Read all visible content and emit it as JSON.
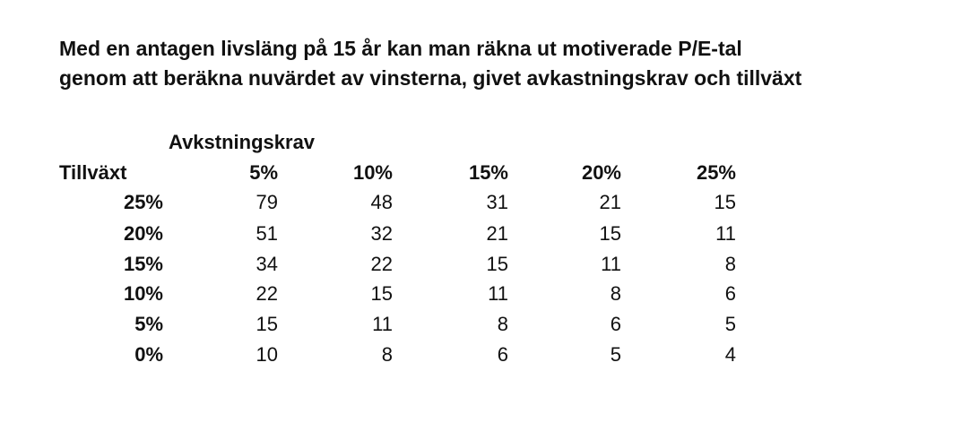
{
  "title": {
    "line1": "Med en antagen livsläng på 15 år kan man räkna ut motiverade P/E-tal",
    "line2": "genom att beräkna nuvärdet av vinsterna, givet avkastningskrav och tillväxt"
  },
  "table": {
    "column_group_label": "Avkstningskrav",
    "row_header_label": "Tillväxt",
    "columns": [
      "5%",
      "10%",
      "15%",
      "20%",
      "25%"
    ],
    "rows": [
      {
        "label": "25%",
        "values": [
          "79",
          "48",
          "31",
          "21",
          "15"
        ]
      },
      {
        "label": "20%",
        "values": [
          "51",
          "32",
          "21",
          "15",
          "11"
        ]
      },
      {
        "label": "15%",
        "values": [
          "34",
          "22",
          "15",
          "11",
          "8"
        ]
      },
      {
        "label": "10%",
        "values": [
          "22",
          "15",
          "11",
          "8",
          "6"
        ]
      },
      {
        "label": "5%",
        "values": [
          "15",
          "11",
          "8",
          "6",
          "5"
        ]
      },
      {
        "label": "0%",
        "values": [
          "10",
          "8",
          "6",
          "5",
          "4"
        ]
      }
    ]
  }
}
